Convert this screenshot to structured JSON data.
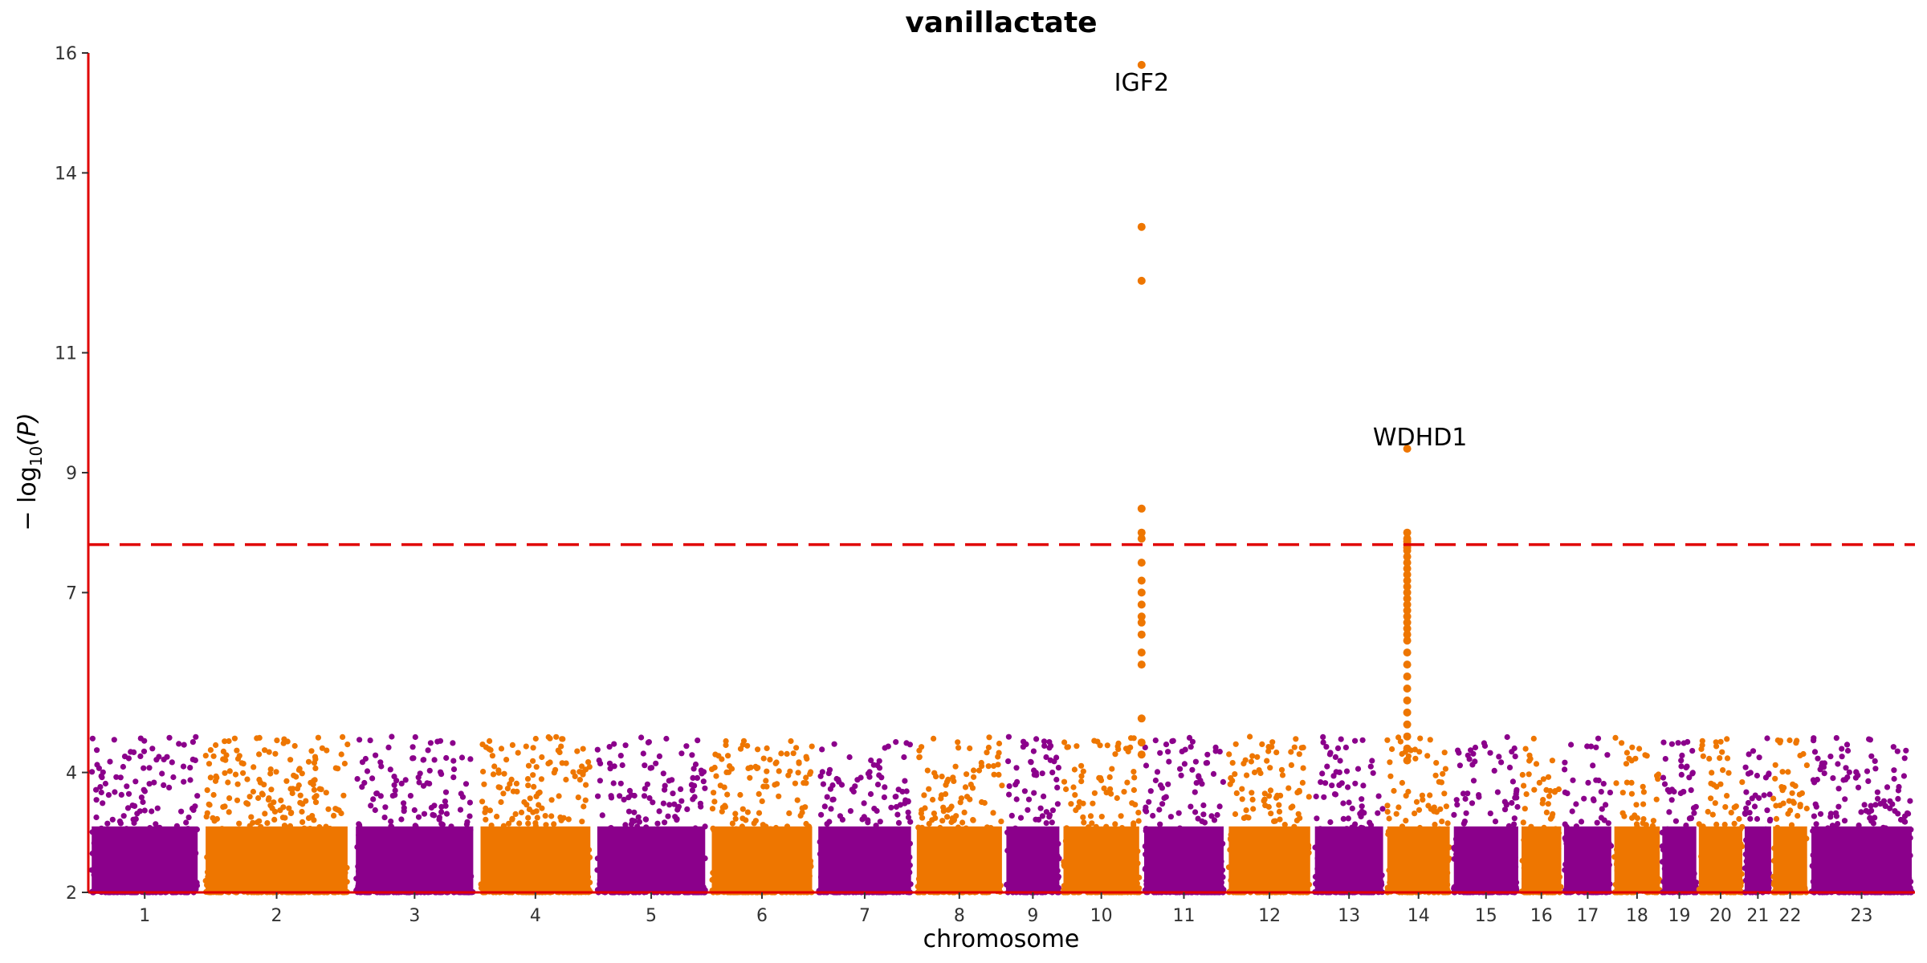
{
  "chart_data": {
    "type": "scatter",
    "title": "vanillactate",
    "xlabel": "chromosome",
    "ylabel_main": "− log",
    "ylabel_sub": "10",
    "ylabel_var": "(P)",
    "y_ticks": [
      2,
      4,
      7,
      9,
      11,
      14,
      16
    ],
    "ylim": [
      2,
      16
    ],
    "significance_line": 7.8,
    "colors": {
      "odd": "#8b008b",
      "even": "#ee7600",
      "axis": "#e00000",
      "threshold": "#e00000"
    },
    "chromosomes": [
      {
        "label": "1",
        "size": 5.6
      },
      {
        "label": "2",
        "size": 7.5
      },
      {
        "label": "3",
        "size": 6.2
      },
      {
        "label": "4",
        "size": 5.8
      },
      {
        "label": "5",
        "size": 5.7
      },
      {
        "label": "6",
        "size": 5.3
      },
      {
        "label": "7",
        "size": 4.9
      },
      {
        "label": "8",
        "size": 4.5
      },
      {
        "label": "9",
        "size": 2.8
      },
      {
        "label": "10",
        "size": 4.0
      },
      {
        "label": "11",
        "size": 4.2
      },
      {
        "label": "12",
        "size": 4.3
      },
      {
        "label": "13",
        "size": 3.6
      },
      {
        "label": "14",
        "size": 3.3
      },
      {
        "label": "15",
        "size": 3.4
      },
      {
        "label": "16",
        "size": 2.1
      },
      {
        "label": "17",
        "size": 2.5
      },
      {
        "label": "18",
        "size": 2.4
      },
      {
        "label": "19",
        "size": 1.8
      },
      {
        "label": "20",
        "size": 2.3
      },
      {
        "label": "21",
        "size": 1.4
      },
      {
        "label": "22",
        "size": 1.8
      },
      {
        "label": "23",
        "size": 5.3
      }
    ],
    "highlights": [
      {
        "chromosome": "10",
        "pos": 1.0,
        "values": [
          15.8,
          13.1,
          12.2,
          8.4,
          8.0,
          7.9,
          7.5,
          7.2,
          7.0,
          6.8,
          6.6,
          6.5,
          6.3,
          6.0,
          5.8,
          4.9,
          4.5,
          4.3
        ]
      },
      {
        "chromosome": "14",
        "pos": 0.33,
        "values": [
          9.4,
          8.0,
          7.9,
          7.85,
          7.8,
          7.75,
          7.7,
          7.6,
          7.5,
          7.4,
          7.3,
          7.2,
          7.1,
          7.0,
          6.9,
          6.8,
          6.7,
          6.6,
          6.5,
          6.4,
          6.3,
          6.2,
          6.0,
          5.8,
          5.6,
          5.4,
          5.2,
          5.0,
          4.8,
          4.6,
          4.4,
          4.2
        ]
      }
    ],
    "annotations": [
      {
        "text": "IGF2",
        "chromosome": "10",
        "pos": 1.0,
        "y": 15.8
      },
      {
        "text": "WDHD1",
        "chromosome": "14",
        "pos": 0.33,
        "y": 9.4
      }
    ]
  }
}
